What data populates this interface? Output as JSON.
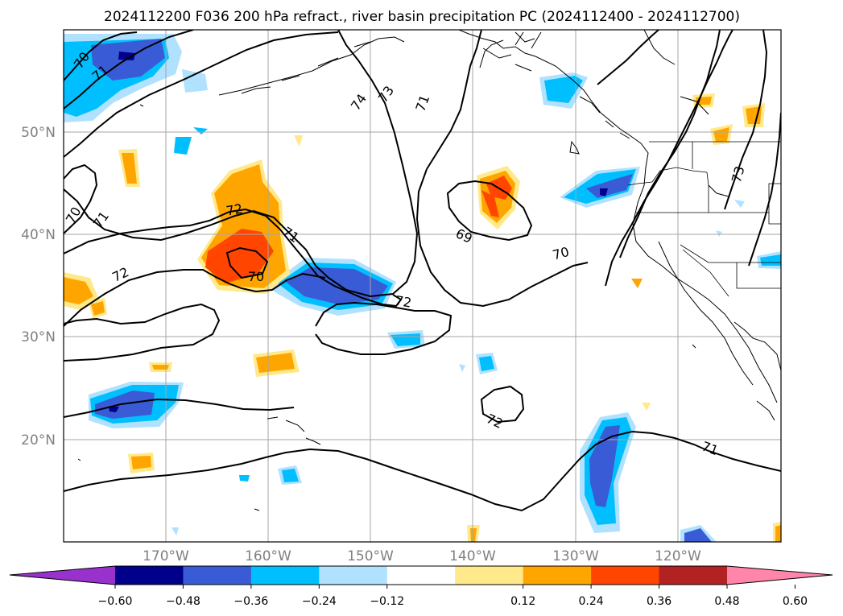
{
  "title": "2024112200 F036 200 hPa refract., river basin precipitation PC (2024112400 - 2024112700)",
  "map": {
    "lon_range": [
      -180,
      -110
    ],
    "lat_range": [
      10,
      60
    ],
    "lat_labels": [
      "20°N",
      "30°N",
      "40°N",
      "50°N"
    ],
    "lon_labels": [
      "170°W",
      "160°W",
      "150°W",
      "140°W",
      "130°W",
      "120°W"
    ],
    "gridlines": true
  },
  "contour_labels": [
    "70",
    "71",
    "74",
    "73",
    "71",
    "70",
    "71",
    "72",
    "71",
    "72",
    "70",
    "69",
    "70",
    "72",
    "72",
    "71",
    "73"
  ],
  "colorbar": {
    "ticks": [
      "−0.60",
      "−0.48",
      "−0.36",
      "−0.24",
      "−0.12",
      "0.12",
      "0.24",
      "0.36",
      "0.48",
      "0.60"
    ],
    "colors": [
      "#9932cc",
      "#00008b",
      "#3a5bd6",
      "#00bfff",
      "#b0e2ff",
      "#ffffff",
      "#ffe98a",
      "#ffa500",
      "#ff4500",
      "#b22222",
      "#ff85aa"
    ]
  }
}
